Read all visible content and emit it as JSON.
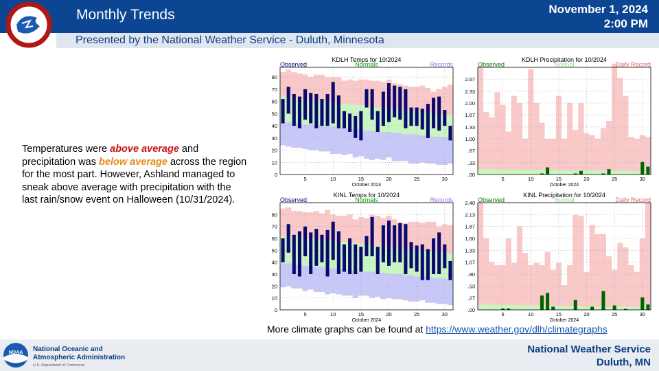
{
  "header": {
    "title": "Monthly Trends",
    "date": "November 1, 2024",
    "time": "2:00 PM",
    "subtitle": "Presented by the National Weather Service - Duluth, Minnesota",
    "logo_text": "NATIONAL WEATHER SERVICE"
  },
  "summary": {
    "p1": "Temperatures were ",
    "above": "above average",
    "p2": " and precipitation was ",
    "below": "below average",
    "p3": " across the region for the most part. However, Ashland managed to sneak above average with precipitation with the last rain/snow event on Halloween (10/31/2024)."
  },
  "more": {
    "text": "More climate graphs can be found at ",
    "link": "https://www.weather.gov/dlh/climategraphs"
  },
  "footer": {
    "noaa_line1": "National Oceanic and",
    "noaa_line2": "Atmospheric Administration",
    "noaa_dept": "U.S. Department of Commerce",
    "noaa_logo_text": "NOAA",
    "nws_line1": "National Weather Service",
    "nws_line2": "Duluth, MN"
  },
  "colors": {
    "header_bg": "#0c4592",
    "observed": "#0a0a6e",
    "normal_fill": "#c8f5c0",
    "record_high_fill": "#f9c8c8",
    "record_low_fill": "#c8c8f8",
    "precip_observed": "#006400",
    "precip_record": "#f9c8c8",
    "legend_observed": "#00007f",
    "legend_normals": "#00a000",
    "legend_records": "#a070e0",
    "legend_precip_observed": "#007000",
    "legend_normal_precip": "#8ee08e",
    "legend_daily_record": "#e06060"
  },
  "chart_data": [
    {
      "type": "bar",
      "title": "KDLH Temps for 10/2024",
      "legend": [
        "Observed",
        "Normals",
        "Records"
      ],
      "xlabel": "October 2024",
      "xticks": [
        5,
        10,
        15,
        20,
        25,
        30
      ],
      "yticks": [
        0,
        10,
        20,
        30,
        40,
        50,
        60,
        70,
        80
      ],
      "ylim": [
        0,
        88
      ],
      "xlim": [
        0.5,
        31.5
      ],
      "days": [
        1,
        2,
        3,
        4,
        5,
        6,
        7,
        8,
        9,
        10,
        11,
        12,
        13,
        14,
        15,
        16,
        17,
        18,
        19,
        20,
        21,
        22,
        23,
        24,
        25,
        26,
        27,
        28,
        29,
        30,
        31
      ],
      "observed_high": [
        62,
        72,
        66,
        64,
        70,
        67,
        66,
        62,
        66,
        76,
        65,
        52,
        50,
        48,
        52,
        70,
        70,
        52,
        68,
        75,
        73,
        72,
        70,
        55,
        55,
        54,
        58,
        63,
        64,
        53,
        40
      ],
      "observed_low": [
        42,
        50,
        40,
        38,
        45,
        42,
        38,
        40,
        40,
        42,
        38,
        38,
        35,
        30,
        28,
        55,
        45,
        35,
        40,
        43,
        47,
        45,
        38,
        40,
        40,
        37,
        30,
        38,
        36,
        40,
        28
      ],
      "normal_high": [
        64,
        63,
        63,
        62,
        62,
        61,
        61,
        60,
        60,
        59,
        59,
        58,
        58,
        57,
        57,
        56,
        56,
        55,
        55,
        54,
        54,
        53,
        53,
        52,
        52,
        51,
        51,
        50,
        50,
        49,
        49
      ],
      "normal_low": [
        43,
        43,
        42,
        42,
        41,
        41,
        40,
        40,
        40,
        39,
        39,
        38,
        38,
        37,
        37,
        36,
        36,
        36,
        35,
        35,
        34,
        34,
        33,
        33,
        33,
        32,
        32,
        31,
        31,
        31,
        30
      ],
      "record_high": [
        84,
        86,
        84,
        83,
        82,
        80,
        82,
        82,
        80,
        80,
        80,
        77,
        78,
        77,
        78,
        78,
        77,
        77,
        76,
        78,
        75,
        74,
        73,
        72,
        72,
        73,
        71,
        68,
        70,
        72,
        74
      ],
      "record_low": [
        24,
        23,
        22,
        22,
        21,
        20,
        20,
        19,
        19,
        17,
        17,
        16,
        17,
        14,
        15,
        13,
        12,
        13,
        12,
        14,
        11,
        11,
        11,
        9,
        9,
        10,
        9,
        9,
        8,
        8,
        9
      ]
    },
    {
      "type": "bar",
      "title": "KDLH Precipitation for 10/2024",
      "legend": [
        "Observed",
        "Normal",
        "Daily Record"
      ],
      "xlabel": "October 2024",
      "xticks": [
        5,
        10,
        15,
        20,
        25,
        30
      ],
      "yticks": [
        ".00",
        ".33",
        ".67",
        "1.00",
        "1.33",
        "1.67",
        "2.00",
        "2.33",
        "2.67"
      ],
      "ylim": [
        0,
        3.0
      ],
      "xlim": [
        0.5,
        31.5
      ],
      "days": [
        1,
        2,
        3,
        4,
        5,
        6,
        7,
        8,
        9,
        10,
        11,
        12,
        13,
        14,
        15,
        16,
        17,
        18,
        19,
        20,
        21,
        22,
        23,
        24,
        25,
        26,
        27,
        28,
        29,
        30,
        31
      ],
      "observed": [
        0,
        0,
        0,
        0,
        0,
        0,
        0,
        0,
        0,
        0,
        0,
        0.03,
        0.2,
        0,
        0,
        0,
        0,
        0.03,
        0.1,
        0,
        0,
        0,
        0.03,
        0.15,
        0,
        0,
        0,
        0,
        0,
        0.35,
        0.22
      ],
      "normal": [
        0.15,
        0.15,
        0.15,
        0.14,
        0.14,
        0.14,
        0.14,
        0.13,
        0.13,
        0.13,
        0.13,
        0.13,
        0.12,
        0.12,
        0.12,
        0.12,
        0.11,
        0.11,
        0.11,
        0.11,
        0.11,
        0.1,
        0.1,
        0.1,
        0.1,
        0.1,
        0.1,
        0.1,
        0.09,
        0.09,
        0.09
      ],
      "record": [
        3.0,
        1.75,
        1.6,
        2.3,
        1.95,
        1.2,
        2.2,
        2.0,
        1.0,
        2.94,
        2.0,
        1.45,
        1.0,
        1.0,
        2.2,
        1.0,
        2.0,
        1.25,
        2.0,
        1.15,
        1.1,
        1.0,
        1.3,
        1.5,
        3.1,
        2.7,
        2.2,
        1.05,
        1.0,
        1.1,
        1.05
      ]
    },
    {
      "type": "bar",
      "title": "KINL Temps for 10/2024",
      "legend": [
        "Observed",
        "Normals",
        "Records"
      ],
      "xlabel": "October 2024",
      "xticks": [
        5,
        10,
        15,
        20,
        25,
        30
      ],
      "yticks": [
        0,
        10,
        20,
        30,
        40,
        50,
        60,
        70,
        80
      ],
      "ylim": [
        0,
        90
      ],
      "xlim": [
        0.5,
        31.5
      ],
      "days": [
        1,
        2,
        3,
        4,
        5,
        6,
        7,
        8,
        9,
        10,
        11,
        12,
        13,
        14,
        15,
        16,
        17,
        18,
        19,
        20,
        21,
        22,
        23,
        24,
        25,
        26,
        27,
        28,
        29,
        30,
        31
      ],
      "observed_high": [
        60,
        72,
        63,
        66,
        70,
        65,
        68,
        63,
        67,
        74,
        66,
        55,
        60,
        55,
        53,
        62,
        78,
        53,
        71,
        75,
        71,
        73,
        72,
        57,
        54,
        55,
        51,
        60,
        65,
        55,
        41
      ],
      "observed_low": [
        40,
        48,
        30,
        28,
        45,
        30,
        37,
        40,
        28,
        42,
        30,
        32,
        30,
        30,
        32,
        45,
        45,
        30,
        40,
        37,
        40,
        40,
        30,
        35,
        32,
        25,
        25,
        30,
        30,
        35,
        25
      ],
      "normal_high": [
        62,
        62,
        61,
        61,
        60,
        60,
        59,
        59,
        58,
        58,
        57,
        57,
        56,
        56,
        55,
        55,
        54,
        54,
        53,
        53,
        52,
        52,
        51,
        51,
        50,
        50,
        49,
        49,
        48,
        48,
        47
      ],
      "normal_low": [
        39,
        39,
        38,
        38,
        37,
        37,
        36,
        36,
        35,
        35,
        34,
        34,
        33,
        33,
        32,
        32,
        32,
        31,
        31,
        30,
        30,
        30,
        29,
        29,
        28,
        28,
        28,
        27,
        27,
        26,
        26
      ],
      "record_high": [
        85,
        86,
        83,
        83,
        82,
        82,
        83,
        81,
        84,
        80,
        79,
        79,
        80,
        76,
        78,
        77,
        80,
        79,
        77,
        79,
        76,
        73,
        73,
        74,
        74,
        73,
        74,
        74,
        70,
        72,
        71
      ],
      "record_low": [
        19,
        20,
        18,
        18,
        16,
        17,
        15,
        15,
        13,
        14,
        13,
        12,
        12,
        10,
        12,
        12,
        10,
        11,
        9,
        10,
        9,
        9,
        8,
        7,
        7,
        8,
        6,
        6,
        5,
        5,
        4
      ]
    },
    {
      "type": "bar",
      "title": "KINL Precipitation for 10/2024",
      "legend": [
        "Observed",
        "Normal",
        "Daily Record"
      ],
      "xlabel": "October 2024",
      "xticks": [
        5,
        10,
        15,
        20,
        25,
        30
      ],
      "yticks": [
        ".00",
        ".27",
        ".53",
        ".80",
        "1.07",
        "1.33",
        "1.60",
        "1.87",
        "2.13",
        "2.40"
      ],
      "ylim": [
        0,
        2.4
      ],
      "xlim": [
        0.5,
        31.5
      ],
      "days": [
        1,
        2,
        3,
        4,
        5,
        6,
        7,
        8,
        9,
        10,
        11,
        12,
        13,
        14,
        15,
        16,
        17,
        18,
        19,
        20,
        21,
        22,
        23,
        24,
        25,
        26,
        27,
        28,
        29,
        30,
        31
      ],
      "observed": [
        0,
        0,
        0,
        0,
        0.03,
        0.03,
        0,
        0,
        0,
        0,
        0,
        0.32,
        0.38,
        0.07,
        0,
        0,
        0,
        0.22,
        0,
        0,
        0.07,
        0,
        0.42,
        0,
        0.1,
        0,
        0.02,
        0,
        0,
        0.28,
        0.12
      ],
      "normal": [
        0.12,
        0.12,
        0.12,
        0.11,
        0.11,
        0.11,
        0.11,
        0.1,
        0.1,
        0.1,
        0.1,
        0.1,
        0.09,
        0.09,
        0.09,
        0.09,
        0.09,
        0.08,
        0.08,
        0.08,
        0.08,
        0.08,
        0.08,
        0.07,
        0.07,
        0.07,
        0.07,
        0.07,
        0.07,
        0.07,
        0.06
      ],
      "record": [
        2.4,
        1.6,
        1.07,
        1.0,
        1.0,
        1.6,
        1.05,
        1.87,
        1.27,
        1.0,
        1.05,
        1.0,
        1.3,
        0.9,
        1.05,
        0.55,
        1.0,
        2.13,
        2.1,
        0.85,
        1.9,
        1.7,
        1.7,
        1.2,
        0.9,
        1.5,
        1.4,
        1.0,
        0.85,
        1.6,
        2.4
      ]
    }
  ]
}
